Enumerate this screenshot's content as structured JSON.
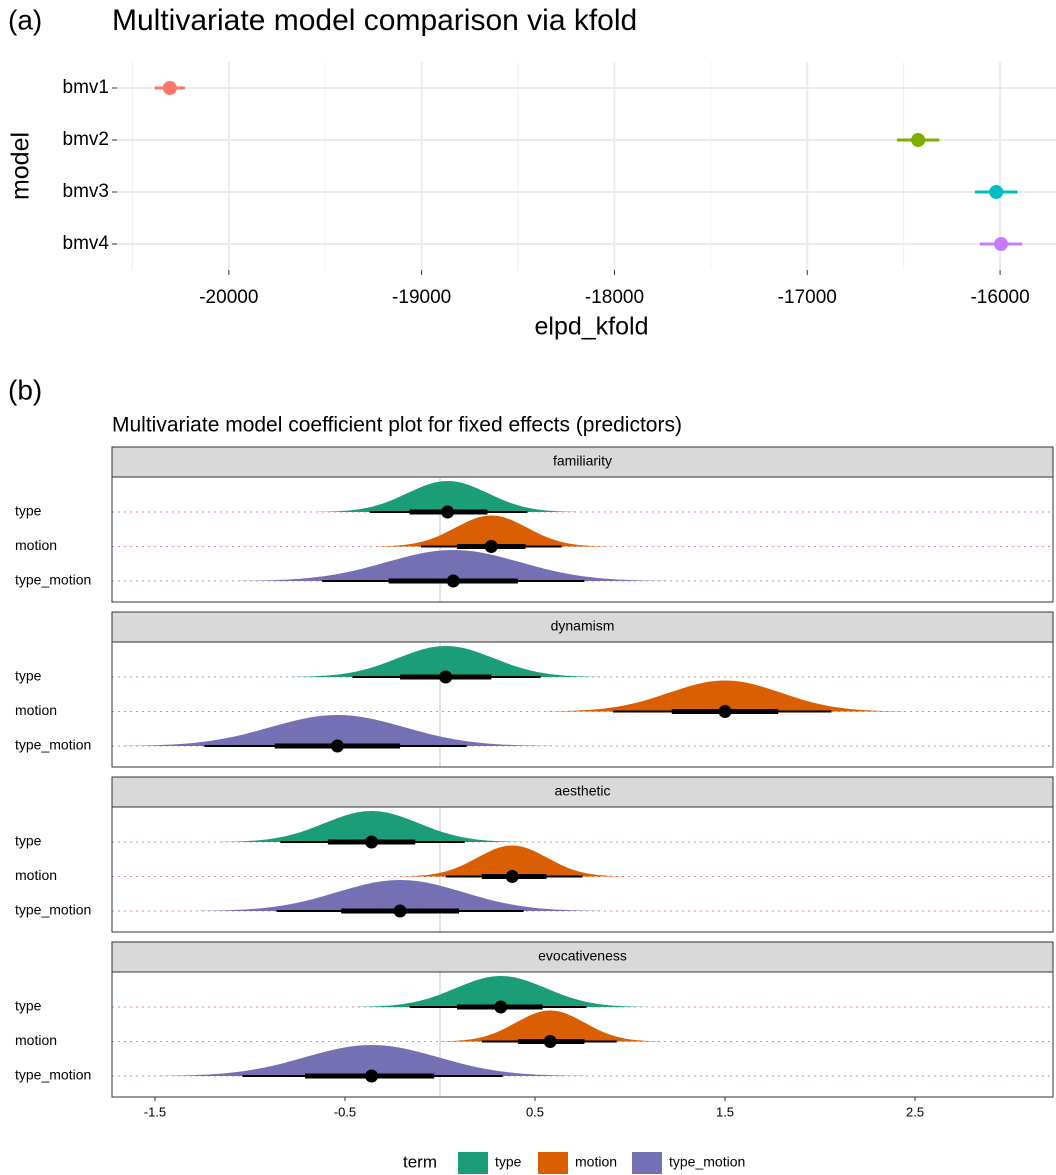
{
  "chart_data": [
    {
      "type": "pointrange",
      "tag": "(a)",
      "title": "Multivariate model comparison via kfold",
      "x_label": "elpd_kfold",
      "y_label": "model",
      "categories": [
        "bmv1",
        "bmv2",
        "bmv3",
        "bmv4"
      ],
      "values": [
        -20306,
        -16425,
        -16020,
        -15995
      ],
      "errors": [
        78,
        110,
        110,
        110
      ],
      "colors": [
        "#f8766d",
        "#7cae00",
        "#00bfc4",
        "#c77cff"
      ],
      "xlim": [
        -20580,
        -15710
      ],
      "xticks": [
        -20000,
        -19000,
        -18000,
        -17000,
        -16000
      ],
      "grid": true
    },
    {
      "type": "halfeye",
      "tag": "(b)",
      "title": "Multivariate model coefficient plot for fixed effects (predictors)",
      "categories": [
        "type",
        "motion",
        "type_motion"
      ],
      "legend_title": "term",
      "series": [
        {
          "name": "type",
          "color": "#1b9e77"
        },
        {
          "name": "motion",
          "color": "#d95f02"
        },
        {
          "name": "type_motion",
          "color": "#7570b3"
        }
      ],
      "facets": [
        {
          "title": "familiarity",
          "median": [
            0.04,
            0.27,
            0.07
          ],
          "inner": [
            [
              -0.16,
              0.25
            ],
            [
              0.09,
              0.45
            ],
            [
              -0.27,
              0.41
            ]
          ],
          "outer": [
            [
              -0.37,
              0.46
            ],
            [
              -0.1,
              0.64
            ],
            [
              -0.62,
              0.76
            ]
          ]
        },
        {
          "title": "dynamism",
          "median": [
            0.03,
            1.5,
            -0.54
          ],
          "inner": [
            [
              -0.21,
              0.27
            ],
            [
              1.22,
              1.78
            ],
            [
              -0.87,
              -0.21
            ]
          ],
          "outer": [
            [
              -0.46,
              0.53
            ],
            [
              0.91,
              2.06
            ],
            [
              -1.24,
              0.14
            ]
          ]
        },
        {
          "title": "aesthetic",
          "median": [
            -0.36,
            0.38,
            -0.21
          ],
          "inner": [
            [
              -0.59,
              -0.13
            ],
            [
              0.22,
              0.56
            ],
            [
              -0.52,
              0.1
            ]
          ],
          "outer": [
            [
              -0.84,
              0.13
            ],
            [
              0.03,
              0.75
            ],
            [
              -0.86,
              0.44
            ]
          ]
        },
        {
          "title": "evocativeness",
          "median": [
            0.32,
            0.58,
            -0.36
          ],
          "inner": [
            [
              0.09,
              0.54
            ],
            [
              0.41,
              0.76
            ],
            [
              -0.71,
              -0.03
            ]
          ],
          "outer": [
            [
              -0.16,
              0.77
            ],
            [
              0.22,
              0.93
            ],
            [
              -1.04,
              0.33
            ]
          ]
        }
      ],
      "ref_line": 0,
      "xlim": [
        -1.726,
        3.226
      ],
      "xticks": [
        -1.5,
        -0.5,
        0.5,
        1.5,
        2.5
      ]
    }
  ]
}
